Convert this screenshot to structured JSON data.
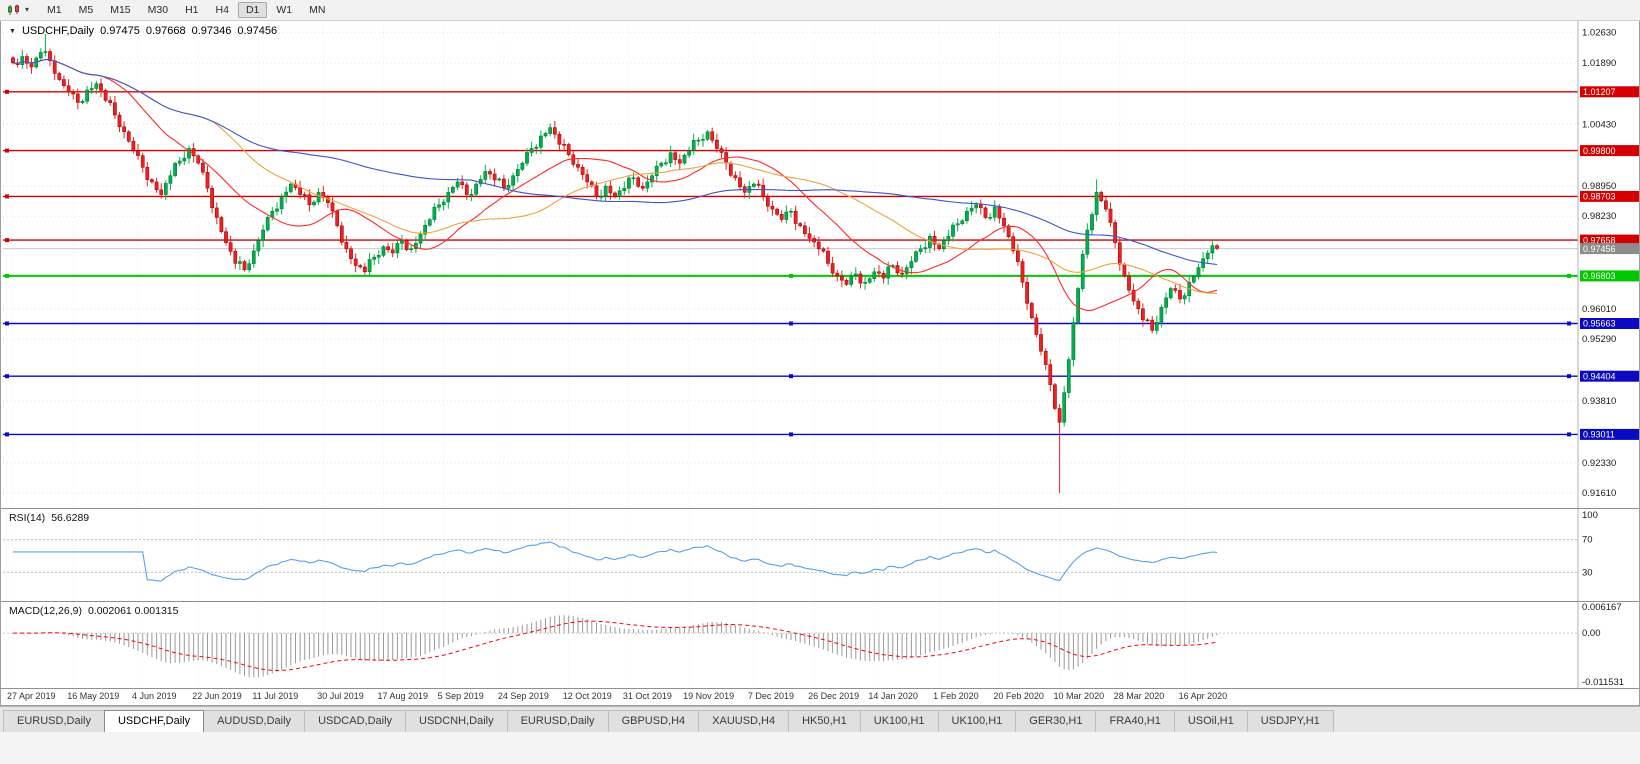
{
  "toolbar": {
    "timeframes": [
      "M1",
      "M5",
      "M15",
      "M30",
      "H1",
      "H4",
      "D1",
      "W1",
      "MN"
    ],
    "active_timeframe": "D1"
  },
  "chart": {
    "title": "USDCHF,Daily",
    "open": "0.97475",
    "high": "0.97668",
    "low": "0.97346",
    "close": "0.97456"
  },
  "indicators": {
    "rsi": {
      "label": "RSI(14)",
      "value": "56.6289",
      "levels": [
        100,
        70,
        30
      ]
    },
    "macd": {
      "label": "MACD(12,26,9)",
      "values": "0.002061 0.001315"
    }
  },
  "tabs": {
    "active_index": 1,
    "items": [
      "EURUSD,Daily",
      "USDCHF,Daily",
      "AUDUSD,Daily",
      "USDCAD,Daily",
      "USDCNH,Daily",
      "EURUSD,Daily",
      "GBPUSD,H4",
      "XAUUSD,H4",
      "HK50,H1",
      "UK100,H1",
      "UK100,H1",
      "GER30,H1",
      "FRA40,H1",
      "USOil,H1",
      "USDJPY,H1"
    ]
  },
  "colors": {
    "bull": "#00b050",
    "bull_border": "#00701e",
    "bear": "#f02020",
    "bear_border": "#8f0000",
    "ma_fast": "#ff2a2a",
    "ma_mid": "#eda33e",
    "ma_slow": "#3b55cc",
    "rsi": "#59a0e6",
    "rsi_level": "#c0c0c0",
    "macd_hist": "#9a9a9a",
    "macd_signal": "#ff0000",
    "grid": "#e4e4e4",
    "axis_text": "#1a1a1a",
    "current_line": "#c8c8c8",
    "current_label_bg": "#8c8c8c",
    "level_red": "#d40000",
    "level_green": "#00c800",
    "level_blue": "#0a0ac0"
  },
  "chart_data": {
    "type": "candlestick",
    "symbol": "USDCHF",
    "period": "Daily",
    "x_labels": [
      "27 Apr 2019",
      "16 May 2019",
      "4 Jun 2019",
      "22 Jun 2019",
      "11 Jul 2019",
      "30 Jul 2019",
      "17 Aug 2019",
      "5 Sep 2019",
      "24 Sep 2019",
      "12 Oct 2019",
      "31 Oct 2019",
      "19 Nov 2019",
      "7 Dec 2019",
      "26 Dec 2019",
      "14 Jan 2020",
      "1 Feb 2020",
      "20 Feb 2020",
      "10 Mar 2020",
      "28 Mar 2020",
      "16 Apr 2020"
    ],
    "y_axis": {
      "top": 1.029,
      "bottom": 0.9125,
      "plain_ticks": [
        1.0263,
        1.0189,
        1.0043,
        0.9895,
        0.9823,
        0.9601,
        0.9529,
        0.9381,
        0.9233,
        0.9161
      ]
    },
    "hlines": [
      {
        "price": 1.01207,
        "color": "#d40000",
        "width": 1.4,
        "handles": false
      },
      {
        "price": 0.998,
        "color": "#d40000",
        "width": 1.4,
        "handles": false
      },
      {
        "price": 0.98703,
        "color": "#d40000",
        "width": 1.4,
        "handles": false
      },
      {
        "price": 0.97658,
        "color": "#d40000",
        "width": 1.4,
        "handles": false
      },
      {
        "price": 0.96803,
        "color": "#00c800",
        "width": 2.0,
        "handles": true
      },
      {
        "price": 0.95663,
        "color": "#0a0ac0",
        "width": 1.4,
        "handles": true
      },
      {
        "price": 0.94404,
        "color": "#0a0ac0",
        "width": 1.4,
        "handles": true
      },
      {
        "price": 0.93011,
        "color": "#0a0ac0",
        "width": 1.4,
        "handles": true
      }
    ],
    "current_price": 0.97456,
    "crash_low": 0.9161,
    "macd_axis": [
      {
        "label": "0.006167",
        "value": 0.006167
      },
      {
        "label": "0.00",
        "value": 0
      },
      {
        "label": "-0.011531",
        "value": -0.011531
      }
    ],
    "closes": [
      1.019,
      1.0205,
      1.018,
      1.0215,
      1.0195,
      1.015,
      1.012,
      1.0095,
      1.0125,
      1.014,
      1.01,
      1.0065,
      1.0025,
      0.998,
      0.994,
      0.9905,
      0.9875,
      0.992,
      0.9955,
      0.9985,
      0.995,
      0.989,
      0.982,
      0.976,
      0.971,
      0.9695,
      0.974,
      0.979,
      0.9835,
      0.987,
      0.99,
      0.9875,
      0.985,
      0.988,
      0.9855,
      0.98,
      0.9745,
      0.9705,
      0.969,
      0.9725,
      0.975,
      0.9735,
      0.9765,
      0.9745,
      0.978,
      0.9815,
      0.985,
      0.988,
      0.9905,
      0.9875,
      0.99,
      0.993,
      0.991,
      0.989,
      0.992,
      0.995,
      0.9985,
      1.0015,
      1.0035,
      0.9995,
      0.997,
      0.994,
      0.9905,
      0.987,
      0.9895,
      0.987,
      0.989,
      0.9915,
      0.989,
      0.992,
      0.995,
      0.9975,
      0.995,
      0.998,
      1.0005,
      1.0025,
      0.9985,
      0.995,
      0.9915,
      0.988,
      0.99,
      0.987,
      0.984,
      0.9815,
      0.9835,
      0.98,
      0.977,
      0.9745,
      0.971,
      0.968,
      0.966,
      0.9685,
      0.9665,
      0.969,
      0.9675,
      0.9705,
      0.9685,
      0.9715,
      0.9745,
      0.9775,
      0.9745,
      0.9775,
      0.9805,
      0.9835,
      0.985,
      0.982,
      0.9845,
      0.98,
      0.974,
      0.9665,
      0.958,
      0.95,
      0.942,
      0.933,
      0.948,
      0.965,
      0.979,
      0.988,
      0.984,
      0.976,
      0.968,
      0.962,
      0.9575,
      0.955,
      0.9605,
      0.965,
      0.9625,
      0.9665,
      0.97,
      0.9735,
      0.9746
    ]
  }
}
